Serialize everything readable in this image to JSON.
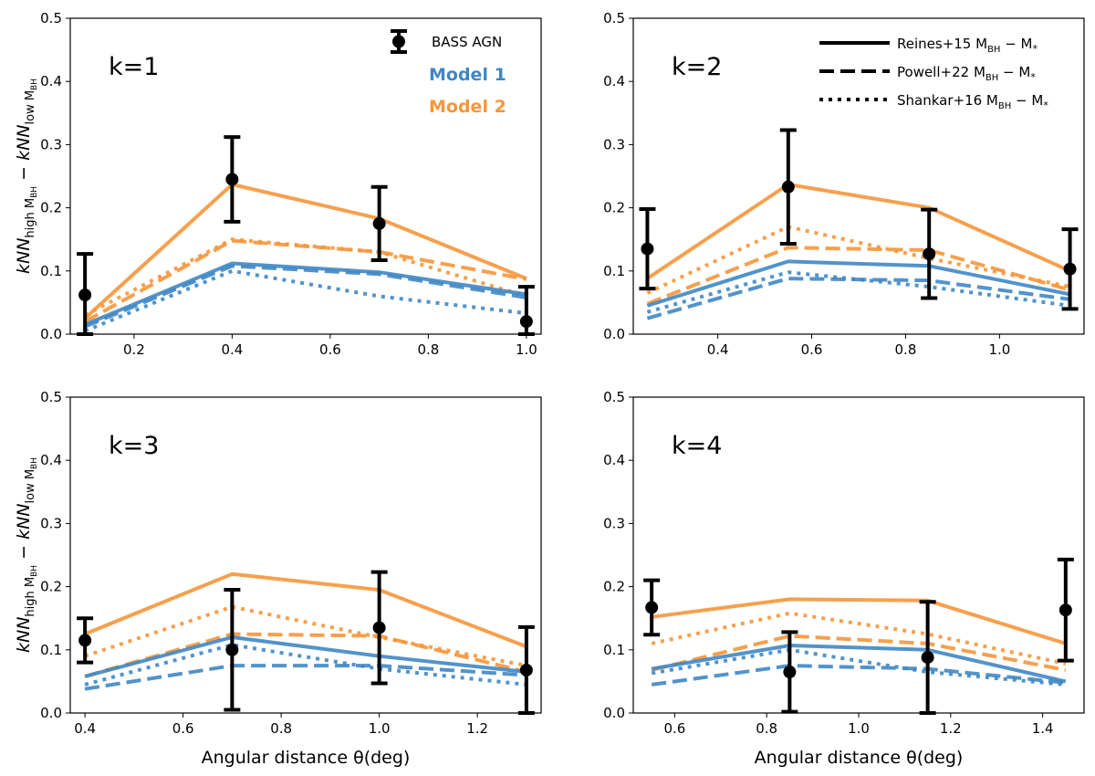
{
  "figure": {
    "ylabel": "kNN_high M_BH − kNN_low M_BH",
    "xlabel": "Angular distance θ(deg)"
  },
  "colors": {
    "model1": "#3f87c4",
    "model2": "#f5963a",
    "data": "#000000"
  },
  "legend": {
    "data_label": "BASS AGN",
    "model1_label": "Model 1",
    "model2_label": "Model 2",
    "relations": [
      {
        "name": "Reines+15",
        "style": "solid"
      },
      {
        "name": "Powell+22",
        "style": "dashed"
      },
      {
        "name": "Shankar+16",
        "style": "dotted"
      }
    ],
    "relation_suffix": "M_BH − M_*"
  },
  "chart_data": [
    {
      "type": "line",
      "panel_label": "k=1",
      "x": [
        0.1,
        0.4,
        0.7,
        1.0
      ],
      "xlim": [
        0.07,
        1.03
      ],
      "xticks": [
        0.2,
        0.4,
        0.6,
        0.8,
        1.0
      ],
      "ylim": [
        0,
        0.5
      ],
      "yticks": [
        0.0,
        0.1,
        0.2,
        0.3,
        0.4,
        0.5
      ],
      "bass": {
        "y": [
          0.062,
          0.245,
          0.175,
          0.02
        ],
        "err_lo": [
          0.062,
          0.067,
          0.058,
          0.02
        ],
        "err_hi": [
          0.065,
          0.067,
          0.058,
          0.055
        ]
      },
      "model1": {
        "Reines+15": [
          0.015,
          0.112,
          0.098,
          0.063
        ],
        "Powell+22": [
          0.012,
          0.108,
          0.095,
          0.058
        ],
        "Shankar+16": [
          0.005,
          0.1,
          0.06,
          0.033
        ]
      },
      "model2": {
        "Reines+15": [
          0.025,
          0.237,
          0.183,
          0.088
        ],
        "Powell+22": [
          0.02,
          0.148,
          0.13,
          0.087
        ],
        "Shankar+16": [
          0.03,
          0.15,
          0.13,
          0.06
        ]
      }
    },
    {
      "type": "line",
      "panel_label": "k=2",
      "x": [
        0.25,
        0.55,
        0.85,
        1.15
      ],
      "xlim": [
        0.22,
        1.18
      ],
      "xticks": [
        0.4,
        0.6,
        0.8,
        1.0
      ],
      "ylim": [
        0,
        0.5
      ],
      "yticks": [
        0.0,
        0.1,
        0.2,
        0.3,
        0.4,
        0.5
      ],
      "bass": {
        "y": [
          0.135,
          0.233,
          0.127,
          0.103
        ],
        "err_lo": [
          0.063,
          0.09,
          0.07,
          0.063
        ],
        "err_hi": [
          0.063,
          0.09,
          0.07,
          0.063
        ]
      },
      "model1": {
        "Reines+15": [
          0.045,
          0.115,
          0.108,
          0.063
        ],
        "Powell+22": [
          0.025,
          0.088,
          0.085,
          0.055
        ],
        "Shankar+16": [
          0.035,
          0.098,
          0.075,
          0.045
        ]
      },
      "model2": {
        "Reines+15": [
          0.088,
          0.237,
          0.2,
          0.1
        ],
        "Powell+22": [
          0.048,
          0.137,
          0.133,
          0.07
        ],
        "Shankar+16": [
          0.065,
          0.17,
          0.12,
          0.075
        ]
      }
    },
    {
      "type": "line",
      "panel_label": "k=3",
      "x": [
        0.4,
        0.7,
        1.0,
        1.3
      ],
      "xlim": [
        0.37,
        1.33
      ],
      "xticks": [
        0.4,
        0.6,
        0.8,
        1.0,
        1.2
      ],
      "ylim": [
        0,
        0.5
      ],
      "yticks": [
        0.0,
        0.1,
        0.2,
        0.3,
        0.4,
        0.5
      ],
      "bass": {
        "y": [
          0.115,
          0.1,
          0.135,
          0.068
        ],
        "err_lo": [
          0.035,
          0.095,
          0.088,
          0.068
        ],
        "err_hi": [
          0.035,
          0.095,
          0.088,
          0.068
        ]
      },
      "model1": {
        "Reines+15": [
          0.058,
          0.12,
          0.09,
          0.065
        ],
        "Powell+22": [
          0.038,
          0.075,
          0.075,
          0.06
        ],
        "Shankar+16": [
          0.045,
          0.108,
          0.07,
          0.045
        ]
      },
      "model2": {
        "Reines+15": [
          0.125,
          0.22,
          0.195,
          0.105
        ],
        "Powell+22": [
          0.058,
          0.125,
          0.122,
          0.065
        ],
        "Shankar+16": [
          0.09,
          0.168,
          0.12,
          0.075
        ]
      }
    },
    {
      "type": "line",
      "panel_label": "k=4",
      "x": [
        0.55,
        0.85,
        1.15,
        1.45
      ],
      "xlim": [
        0.51,
        1.49
      ],
      "xticks": [
        0.6,
        0.8,
        1.0,
        1.2,
        1.4
      ],
      "ylim": [
        0,
        0.5
      ],
      "yticks": [
        0.0,
        0.1,
        0.2,
        0.3,
        0.4,
        0.5
      ],
      "bass": {
        "y": [
          0.167,
          0.065,
          0.088,
          0.163
        ],
        "err_lo": [
          0.043,
          0.063,
          0.088,
          0.08
        ],
        "err_hi": [
          0.043,
          0.063,
          0.088,
          0.08
        ]
      },
      "model1": {
        "Reines+15": [
          0.07,
          0.107,
          0.1,
          0.05
        ],
        "Powell+22": [
          0.045,
          0.075,
          0.07,
          0.048
        ],
        "Shankar+16": [
          0.063,
          0.1,
          0.065,
          0.045
        ]
      },
      "model2": {
        "Reines+15": [
          0.152,
          0.18,
          0.178,
          0.11
        ],
        "Powell+22": [
          0.068,
          0.122,
          0.11,
          0.068
        ],
        "Shankar+16": [
          0.11,
          0.158,
          0.125,
          0.078
        ]
      }
    }
  ]
}
